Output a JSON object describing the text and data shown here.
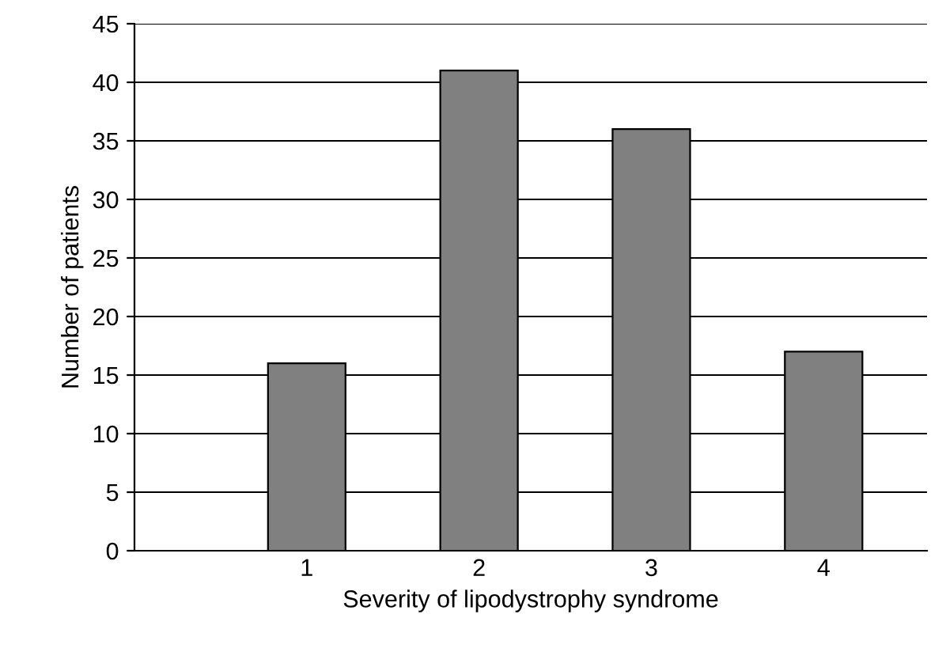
{
  "chart_data": {
    "type": "bar",
    "xlabel": "Severity of lipodystrophy syndrome",
    "ylabel": "Number of patients",
    "categories": [
      "1",
      "2",
      "3",
      "4"
    ],
    "values": [
      16,
      41,
      36,
      17
    ],
    "color": "#808080",
    "ylim": [
      0,
      45
    ],
    "yticks": [
      0,
      5,
      10,
      15,
      20,
      25,
      30,
      35,
      40,
      45
    ],
    "grid": "y",
    "legend": false
  }
}
